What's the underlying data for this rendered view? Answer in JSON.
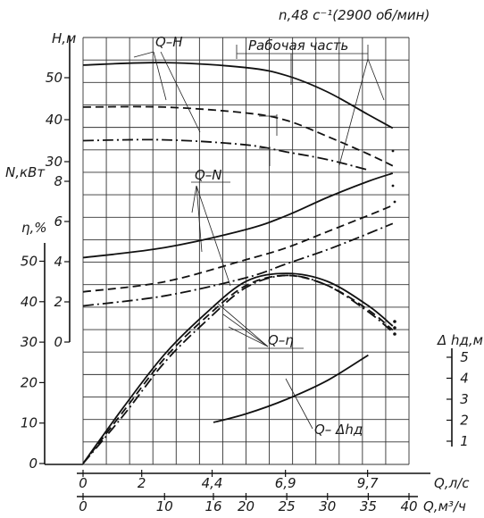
{
  "chart_data": {
    "type": "line",
    "title": "n,48 с⁻¹(2900 об/мин)",
    "x_axes": {
      "flow_ls": {
        "label": "Q,л/с",
        "ticks": [
          "0",
          "2",
          "4,4",
          "6,9",
          "9,7"
        ],
        "values": [
          0,
          2,
          4.4,
          6.9,
          9.7
        ]
      },
      "flow_m3h": {
        "label": "Q,м³/ч",
        "ticks": [
          "0",
          "10",
          "16",
          "20",
          "25",
          "30",
          "35",
          "40"
        ],
        "values": [
          0,
          10,
          16,
          20,
          25,
          30,
          35,
          40
        ]
      }
    },
    "y_axes": {
      "head": {
        "label": "Н,м",
        "ticks": [
          "30",
          "40",
          "50"
        ],
        "values": [
          30,
          40,
          50
        ]
      },
      "power": {
        "label": "N,кВт",
        "ticks": [
          "0",
          "2",
          "4",
          "6",
          "8"
        ],
        "values": [
          0,
          2,
          4,
          6,
          8
        ]
      },
      "efficiency": {
        "label": "η,%",
        "ticks": [
          "0",
          "10",
          "20",
          "30",
          "40",
          "50"
        ],
        "values": [
          0,
          10,
          20,
          30,
          40,
          50
        ]
      },
      "npsh": {
        "label": "Δ hд,м",
        "ticks": [
          "1",
          "2",
          "3",
          "4",
          "5"
        ],
        "values": [
          1,
          2,
          3,
          4,
          5
        ]
      }
    },
    "annotations": {
      "qh": "Q–H",
      "work_zone": "Рабочая часть",
      "qn": "Q–N",
      "qeta": "Q–η",
      "qnpsh": "Q– Δhд"
    },
    "series": [
      {
        "curve": "Q-H",
        "style": "solid",
        "axis": "head",
        "x_m3h": [
          0,
          10,
          20,
          25,
          30,
          35,
          38
        ],
        "y": [
          53,
          53.6,
          52.4,
          50.5,
          46.6,
          41.2,
          38
        ]
      },
      {
        "curve": "Q-H",
        "style": "dashed",
        "axis": "head",
        "x_m3h": [
          0,
          10,
          20,
          25,
          30,
          35,
          38
        ],
        "y": [
          43,
          43,
          41.6,
          39.8,
          36,
          31.8,
          29
        ]
      },
      {
        "curve": "Q-H",
        "style": "dashdot",
        "axis": "head",
        "x_m3h": [
          0,
          10,
          20,
          25,
          30,
          35
        ],
        "y": [
          35,
          35.2,
          34,
          32.3,
          30.5,
          28
        ]
      },
      {
        "curve": "Q-N",
        "style": "solid",
        "axis": "power",
        "x_m3h": [
          0,
          10,
          20,
          25,
          30,
          35,
          38
        ],
        "y": [
          4.2,
          4.7,
          5.6,
          6.3,
          7.2,
          8,
          8.4
        ]
      },
      {
        "curve": "Q-N",
        "style": "dashed",
        "axis": "power",
        "x_m3h": [
          0,
          10,
          20,
          25,
          30,
          35,
          38
        ],
        "y": [
          2.5,
          3,
          4.1,
          4.7,
          5.5,
          6.3,
          6.8
        ]
      },
      {
        "curve": "Q-N",
        "style": "dashdot",
        "axis": "power",
        "x_m3h": [
          0,
          10,
          20,
          25,
          30,
          35,
          38
        ],
        "y": [
          1.8,
          2.3,
          3.2,
          3.9,
          4.6,
          5.4,
          5.9
        ]
      },
      {
        "curve": "Q-η",
        "style": "solid",
        "axis": "efficiency",
        "x_m3h": [
          0,
          5,
          10,
          15,
          20,
          25,
          30,
          35,
          38
        ],
        "y": [
          0,
          14,
          27,
          37,
          45,
          47,
          45,
          39,
          34
        ]
      },
      {
        "curve": "Q-η",
        "style": "dashed",
        "axis": "efficiency",
        "x_m3h": [
          0,
          5,
          10,
          15,
          20,
          25,
          30,
          35,
          38
        ],
        "y": [
          0,
          13,
          26,
          36,
          44,
          46.5,
          44,
          38,
          33
        ]
      },
      {
        "curve": "Q-η",
        "style": "dashdot",
        "axis": "efficiency",
        "x_m3h": [
          0,
          5,
          10,
          15,
          20,
          25,
          30,
          35,
          38
        ],
        "y": [
          0,
          12,
          25,
          35,
          43.5,
          46.5,
          44,
          37.5,
          32.5
        ]
      },
      {
        "curve": "Q-Δhд",
        "style": "solid",
        "axis": "npsh",
        "x_m3h": [
          16,
          20,
          25,
          30,
          35
        ],
        "y": [
          1.9,
          2.3,
          3,
          3.9,
          5.1
        ]
      }
    ],
    "xlim_m3h": [
      0,
      40
    ],
    "grid": true
  }
}
